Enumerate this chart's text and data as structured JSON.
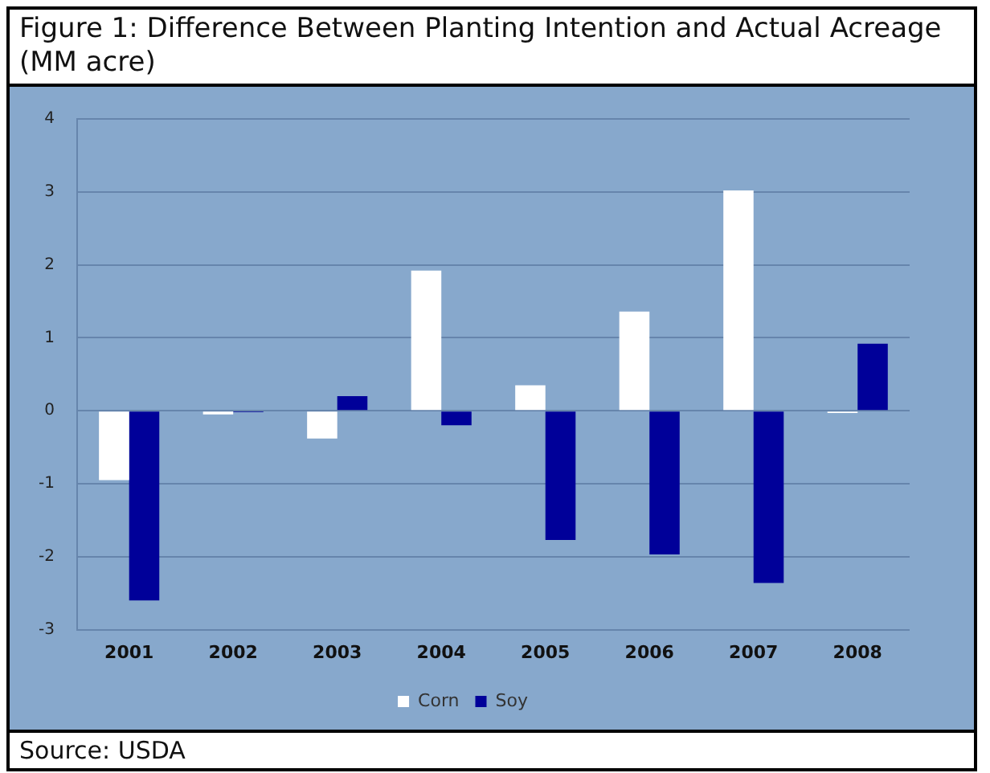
{
  "chart_data": {
    "type": "bar",
    "title": "Figure 1: Difference Between Planting Intention and Actual Acreage (MM acre)",
    "categories": [
      "2001",
      "2002",
      "2003",
      "2004",
      "2005",
      "2006",
      "2007",
      "2008"
    ],
    "series": [
      {
        "name": "Corn",
        "color": "#ffffff",
        "values": [
          -0.95,
          -0.05,
          -0.38,
          1.92,
          0.35,
          1.36,
          3.02,
          -0.03
        ]
      },
      {
        "name": "Soy",
        "color": "#000099",
        "values": [
          -2.6,
          -0.02,
          0.2,
          -0.2,
          -1.77,
          -1.97,
          -2.36,
          0.92
        ]
      }
    ],
    "ylim": [
      -3,
      4
    ],
    "yticks": [
      -3,
      -2,
      -1,
      0,
      1,
      2,
      3,
      4
    ],
    "grid": "y",
    "legend": "bottom",
    "annotations": [
      "Source: USDA"
    ]
  }
}
